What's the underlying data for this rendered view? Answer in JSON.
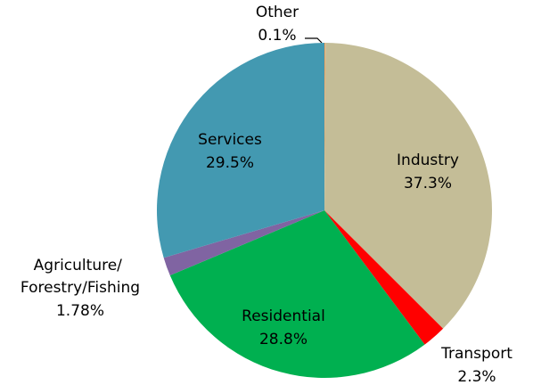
{
  "chart_data": {
    "type": "pie",
    "categories": [
      "Other",
      "Industry",
      "Transport",
      "Residential",
      "Agriculture/\nForestry/Fishing",
      "Services"
    ],
    "values": [
      0.1,
      37.3,
      2.3,
      28.8,
      1.78,
      29.5
    ],
    "value_labels": [
      "0.1%",
      "37.3%",
      "2.3%",
      "28.8%",
      "1.78%",
      "29.5%"
    ],
    "colors": [
      "#f4a460",
      "#c4bd97",
      "#ff0000",
      "#00b050",
      "#8064a2",
      "#4399b1"
    ]
  }
}
